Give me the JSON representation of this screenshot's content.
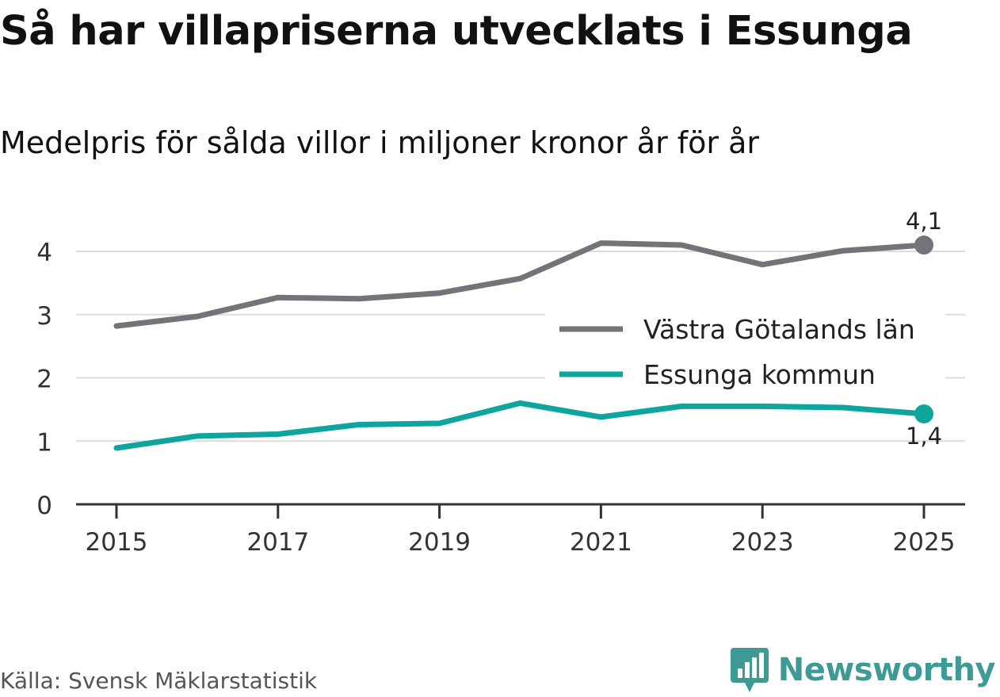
{
  "title": "Så har villapriserna utvecklats i Essunga",
  "subtitle": "Medelpris för sålda villor i miljoner kronor år för år",
  "source": "Källa: Svensk Mäklarstatistik",
  "brand": {
    "name": "Newsworthy",
    "icon": "newsworthy-logo-icon",
    "color": "#3d9a94"
  },
  "chart_data": {
    "type": "line",
    "title": "Så har villapriserna utvecklats i Essunga",
    "subtitle": "Medelpris för sålda villor i miljoner kronor år för år",
    "xlabel": "",
    "ylabel": "",
    "x": [
      2015,
      2016,
      2017,
      2018,
      2019,
      2020,
      2021,
      2022,
      2023,
      2024,
      2025
    ],
    "x_ticks": [
      "2015",
      "2017",
      "2019",
      "2021",
      "2023",
      "2025"
    ],
    "y_ticks": [
      "0",
      "1",
      "2",
      "3",
      "4"
    ],
    "ylim": [
      0,
      4.5
    ],
    "grid": true,
    "legend": "right",
    "series": [
      {
        "name": "Västra Götalands län",
        "color": "#74737a",
        "values": [
          2.82,
          2.97,
          3.27,
          3.25,
          3.34,
          3.57,
          4.13,
          4.1,
          3.79,
          4.01,
          4.1
        ],
        "end_label": "4,1"
      },
      {
        "name": "Essunga kommun",
        "color": "#0da59d",
        "values": [
          0.89,
          1.08,
          1.11,
          1.26,
          1.28,
          1.6,
          1.38,
          1.55,
          1.55,
          1.53,
          1.43
        ],
        "end_label": "1,4"
      }
    ]
  }
}
